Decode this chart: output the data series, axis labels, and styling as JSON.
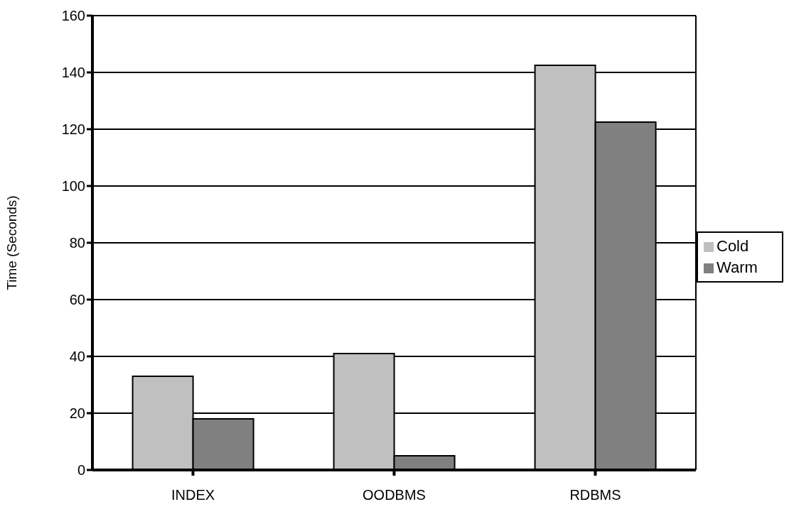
{
  "chart_data": {
    "type": "bar",
    "ylabel": "Time (Seconds)",
    "categories": [
      "INDEX",
      "OODBMS",
      "RDBMS"
    ],
    "series": [
      {
        "name": "Cold",
        "color": "#c0c0c0",
        "values": [
          33,
          41,
          142.5
        ]
      },
      {
        "name": "Warm",
        "color": "#808080",
        "values": [
          18,
          5,
          122.5
        ]
      }
    ],
    "ylim": [
      0,
      160
    ],
    "yticks": [
      0,
      20,
      40,
      60,
      80,
      100,
      120,
      140,
      160
    ],
    "grid": "y",
    "legend": "right"
  }
}
